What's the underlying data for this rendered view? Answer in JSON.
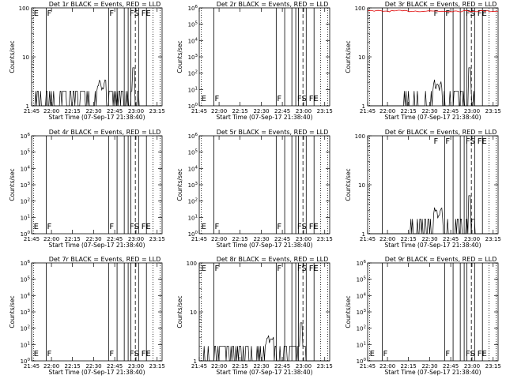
{
  "figure": {
    "start_time_label": "Start Time (07-Sep-17 21:38:40)",
    "x_tick_labels": [
      "21:45",
      "22:00",
      "22:15",
      "22:30",
      "22:45",
      "23:00",
      "23:15"
    ]
  },
  "chart_data": [
    {
      "type": "line",
      "title": "Det 1r BLACK = Events, RED = LLD",
      "ylabel": "Counts/sec",
      "yscale": "log",
      "ylim": [
        1,
        100
      ],
      "yticks": [
        "1",
        "10",
        "100"
      ],
      "flags": [
        "E",
        "F",
        "F",
        "FS",
        "FE"
      ],
      "series": [
        {
          "name": "Events",
          "color": "#000000"
        }
      ],
      "events_profile": "noisy",
      "has_lld": false
    },
    {
      "type": "line",
      "title": "Det 2r BLACK = Events, RED = LLD",
      "ylabel": "Counts/sec",
      "yscale": "log",
      "ylim": [
        1,
        1000000
      ],
      "yticks": [
        "10^0",
        "10^1",
        "10^2",
        "10^3",
        "10^4",
        "10^5",
        "10^6"
      ],
      "flags": [
        "E",
        "F",
        "F",
        "FS",
        "FE"
      ],
      "series": [
        {
          "name": "Events",
          "color": "#000000"
        }
      ],
      "events_profile": "none",
      "has_lld": false
    },
    {
      "type": "line",
      "title": "Det 3r BLACK = Events, RED = LLD",
      "ylabel": "Counts/sec",
      "yscale": "log",
      "ylim": [
        1,
        100
      ],
      "yticks": [
        "1",
        "10",
        "100"
      ],
      "flags": [
        "F",
        "F",
        "FS",
        "FE"
      ],
      "series": [
        {
          "name": "Events",
          "color": "#000000"
        },
        {
          "name": "LLD",
          "color": "#e00000"
        }
      ],
      "events_profile": "spiky",
      "has_lld": true
    },
    {
      "type": "line",
      "title": "Det 4r BLACK = Events, RED = LLD",
      "ylabel": "Counts/sec",
      "yscale": "log",
      "ylim": [
        1,
        1000000
      ],
      "yticks": [
        "10^0",
        "10^1",
        "10^2",
        "10^3",
        "10^4",
        "10^5",
        "10^6"
      ],
      "flags": [
        "E",
        "F",
        "F",
        "FS",
        "FE"
      ],
      "series": [
        {
          "name": "Events",
          "color": "#000000"
        }
      ],
      "events_profile": "none",
      "has_lld": false
    },
    {
      "type": "line",
      "title": "Det 5r BLACK = Events, RED = LLD",
      "ylabel": "Counts/sec",
      "yscale": "log",
      "ylim": [
        1,
        1000000
      ],
      "yticks": [
        "10^0",
        "10^1",
        "10^2",
        "10^3",
        "10^4",
        "10^5",
        "10^6"
      ],
      "flags": [
        "E",
        "F",
        "F",
        "FS",
        "FE"
      ],
      "series": [
        {
          "name": "Events",
          "color": "#000000"
        }
      ],
      "events_profile": "none",
      "has_lld": false
    },
    {
      "type": "line",
      "title": "Det 6r BLACK = Events, RED = LLD",
      "ylabel": "Counts/sec",
      "yscale": "log",
      "ylim": [
        1,
        100
      ],
      "yticks": [
        "1",
        "10",
        "100"
      ],
      "flags": [
        "F",
        "F",
        "FS",
        "FE"
      ],
      "series": [
        {
          "name": "Events",
          "color": "#000000"
        }
      ],
      "events_profile": "spiky",
      "has_lld": false
    },
    {
      "type": "line",
      "title": "Det 7r BLACK = Events, RED = LLD",
      "ylabel": "Counts/sec",
      "yscale": "log",
      "ylim": [
        1,
        1000000
      ],
      "yticks": [
        "10^0",
        "10^1",
        "10^2",
        "10^3",
        "10^4",
        "10^5",
        "10^6"
      ],
      "flags": [
        "E",
        "F",
        "F",
        "FS",
        "FE"
      ],
      "series": [
        {
          "name": "Events",
          "color": "#000000"
        }
      ],
      "events_profile": "none",
      "has_lld": false
    },
    {
      "type": "line",
      "title": "Det 8r BLACK = Events, RED = LLD",
      "ylabel": "Counts/sec",
      "yscale": "log",
      "ylim": [
        1,
        100
      ],
      "yticks": [
        "1",
        "10",
        "100"
      ],
      "flags": [
        "E",
        "F",
        "F",
        "FS",
        "FE"
      ],
      "series": [
        {
          "name": "Events",
          "color": "#000000"
        }
      ],
      "events_profile": "noisy",
      "has_lld": false
    },
    {
      "type": "line",
      "title": "Det 9r BLACK = Events, RED = LLD",
      "ylabel": "Counts/sec",
      "yscale": "log",
      "ylim": [
        1,
        1000000
      ],
      "yticks": [
        "10^0",
        "10^1",
        "10^2",
        "10^3",
        "10^4",
        "10^5",
        "10^6"
      ],
      "flags": [
        "E",
        "F",
        "F",
        "FS",
        "FE"
      ],
      "series": [
        {
          "name": "Events",
          "color": "#000000"
        }
      ],
      "events_profile": "none",
      "has_lld": false
    }
  ]
}
